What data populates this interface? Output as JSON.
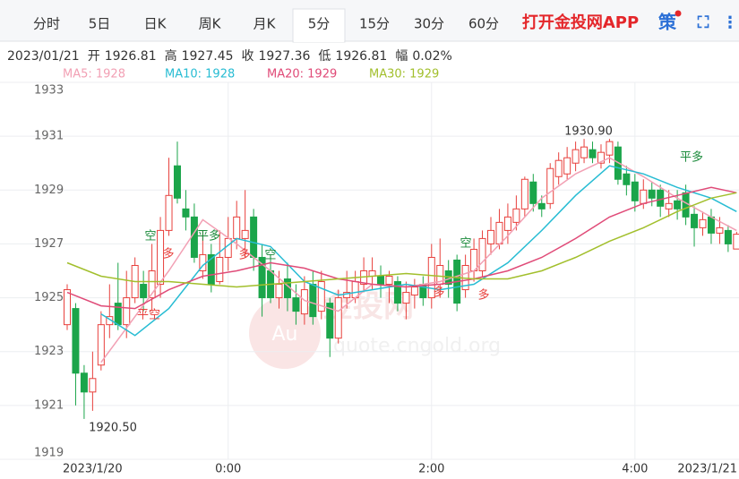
{
  "tabs": [
    "分时",
    "5日",
    "日K",
    "周K",
    "月K",
    "5分",
    "15分",
    "30分",
    "60分"
  ],
  "active_tab": 5,
  "brand": "打开金投网APP",
  "toolbar": [
    "策",
    "⛶",
    "⋮"
  ],
  "info": {
    "date": "2023/01/21",
    "items": [
      {
        "label": "开",
        "value": "1926.81"
      },
      {
        "label": "高",
        "value": "1927.45"
      },
      {
        "label": "收",
        "value": "1927.36"
      },
      {
        "label": "低",
        "value": "1926.81"
      },
      {
        "label": "幅",
        "value": "0.02%"
      }
    ]
  },
  "watermark": [
    "Au",
    "金投网",
    "quote.cngold.org"
  ],
  "chart_data": {
    "type": "candlestick",
    "categories": [
      null,
      null,
      null,
      "2023/1/20",
      null,
      null,
      null,
      null,
      null,
      null,
      null,
      null,
      null,
      null,
      null,
      null,
      null,
      null,
      null,
      "0:00",
      null,
      null,
      null,
      null,
      null,
      null,
      null,
      null,
      null,
      null,
      null,
      null,
      null,
      null,
      null,
      null,
      null,
      null,
      null,
      null,
      null,
      null,
      null,
      "2:00",
      null,
      null,
      null,
      null,
      null,
      null,
      null,
      null,
      null,
      null,
      null,
      null,
      null,
      null,
      null,
      null,
      null,
      null,
      null,
      null,
      null,
      null,
      null,
      "4:00",
      null,
      null,
      null,
      null,
      null,
      null,
      null,
      null,
      null,
      null,
      null,
      "2023/1/21"
    ],
    "open": [
      1924.0,
      1924.6,
      1922.2,
      1921.5,
      1922.5,
      1924,
      1924.8,
      1924,
      1925,
      1925.5,
      1925,
      1925.5,
      1927.5,
      1929.9,
      1928.3,
      1928,
      1926,
      1926.6,
      1925.6,
      1926.5,
      1927.2,
      1927.2,
      1928,
      1926.5,
      1926,
      1925,
      1925.7,
      1925,
      1924.4,
      1925.5,
      1924.5,
      1924.8,
      1923.5,
      1925,
      1925,
      1925.5,
      1925.8,
      1925.8,
      1925.5,
      1925.6,
      1924.8,
      1925.1,
      1925.5,
      1925,
      1925.5,
      1926,
      1926.4,
      1925.3,
      1926,
      1926,
      1927,
      1927,
      1927.5,
      1927.8,
      1928.3,
      1929.3,
      1928.5,
      1928.5,
      1929.5,
      1929.6,
      1930,
      1930.2,
      1930.5,
      1930,
      1930.3,
      1930.6,
      1929.6,
      1929.3,
      1928.5,
      1929,
      1929,
      1928.3,
      1928.6,
      1928.9,
      1928.1,
      1927.6,
      1928,
      1927.4,
      1927.5,
      1926.81
    ],
    "high": [
      1925.5,
      1924.8,
      1922.5,
      1923,
      1924.5,
      1925.5,
      1926.3,
      1926,
      1926.5,
      1926,
      1927,
      1928,
      1930.2,
      1930.8,
      1929,
      1928.5,
      1927.5,
      1927,
      1927.5,
      1928,
      1928.6,
      1929,
      1928.3,
      1927,
      1926.5,
      1926,
      1926.3,
      1925.5,
      1925.8,
      1926,
      1926,
      1925,
      1925.3,
      1926,
      1926,
      1926.5,
      1926.5,
      1926.2,
      1926,
      1925.8,
      1925.6,
      1925.7,
      1925.8,
      1927,
      1927.2,
      1926.4,
      1926.6,
      1926.6,
      1927.2,
      1927.5,
      1928,
      1928.3,
      1928.5,
      1928.8,
      1929.5,
      1929.6,
      1928.8,
      1930,
      1930.4,
      1930.6,
      1930.8,
      1930.9,
      1930.8,
      1930.7,
      1930.9,
      1930.8,
      1929.9,
      1929.6,
      1929.4,
      1929.3,
      1929.2,
      1929,
      1929,
      1929.2,
      1928.4,
      1928.2,
      1928.3,
      1928,
      1927.7,
      1927.45
    ],
    "low": [
      1923.8,
      1921.0,
      1920.5,
      1920.8,
      1922.3,
      1923.5,
      1923.8,
      1923.5,
      1924.8,
      1924.5,
      1924.5,
      1925,
      1927.3,
      1928.5,
      1927.5,
      1926.3,
      1925.7,
      1925.2,
      1925.5,
      1926,
      1926.8,
      1926.5,
      1926,
      1924.3,
      1924.8,
      1924.6,
      1924.5,
      1924,
      1924,
      1924,
      1924.2,
      1922.8,
      1923.3,
      1924.6,
      1924.8,
      1925.2,
      1925.3,
      1925,
      1924.8,
      1924.5,
      1924.2,
      1924.6,
      1924.7,
      1924.6,
      1925,
      1925,
      1924.5,
      1925,
      1925.6,
      1925.8,
      1926.6,
      1926.8,
      1927,
      1927.5,
      1928,
      1928.2,
      1928,
      1928.3,
      1929.2,
      1929.4,
      1929.7,
      1930,
      1930,
      1929.8,
      1930,
      1929.2,
      1928.8,
      1928.2,
      1928.3,
      1928.4,
      1928,
      1928,
      1927.9,
      1927.7,
      1926.9,
      1927.3,
      1927,
      1927,
      1926.7,
      1926.81
    ],
    "close": [
      1925.3,
      1922.2,
      1921.5,
      1922,
      1924,
      1924.3,
      1924,
      1925,
      1926.2,
      1925,
      1926,
      1927.5,
      1928.8,
      1928.7,
      1928,
      1926.5,
      1926.6,
      1925.5,
      1926.5,
      1927.2,
      1928,
      1927.5,
      1926.5,
      1925,
      1925,
      1925.5,
      1925,
      1924.5,
      1925.3,
      1924.3,
      1925.6,
      1923.5,
      1925,
      1925.2,
      1925.6,
      1926,
      1926,
      1925.5,
      1925.8,
      1924.8,
      1925.2,
      1925.4,
      1925,
      1926.5,
      1926.2,
      1925.5,
      1924.8,
      1926.2,
      1926.8,
      1927.2,
      1927.5,
      1927.8,
      1928,
      1928.3,
      1929.4,
      1928.5,
      1928.3,
      1929.8,
      1930.1,
      1930.2,
      1930.5,
      1930.6,
      1930.2,
      1930.4,
      1930.8,
      1929.4,
      1929.2,
      1928.6,
      1929,
      1928.7,
      1928.4,
      1928.5,
      1928.3,
      1928,
      1927.6,
      1927.9,
      1927.4,
      1927.6,
      1927,
      1927.36
    ],
    "up_color": "#e8403c",
    "down_color": "#1ba54a",
    "series": [
      {
        "name": "MA5: 1928",
        "color": "#f2a0b4",
        "x": [
          0,
          4,
          8,
          12,
          16,
          20,
          24,
          28,
          32,
          36,
          40,
          44,
          48,
          52,
          56,
          60,
          64,
          68,
          72,
          76,
          79
        ],
        "values": [
          null,
          1922.6,
          1924.3,
          1926,
          1927.9,
          1927.0,
          1926.0,
          1924.9,
          1924.5,
          1925.5,
          1925.4,
          1925.6,
          1926,
          1927.3,
          1928.7,
          1929.6,
          1930.2,
          1929.5,
          1928.7,
          1928.0,
          1927.5
        ]
      },
      {
        "name": "MA10: 1928",
        "color": "#27bcd3",
        "x": [
          0,
          4,
          8,
          12,
          16,
          20,
          24,
          28,
          32,
          36,
          40,
          44,
          48,
          52,
          56,
          60,
          64,
          68,
          72,
          76,
          79
        ],
        "values": [
          null,
          1924.4,
          1923.6,
          1924.6,
          1926.2,
          1927.2,
          1926.9,
          1925.6,
          1925.1,
          1925.3,
          1925.5,
          1925.3,
          1925.5,
          1926.3,
          1927.5,
          1928.8,
          1929.9,
          1929.6,
          1929.1,
          1928.7,
          1928.2
        ]
      },
      {
        "name": "MA20: 1929",
        "color": "#e04b78",
        "x": [
          0,
          4,
          8,
          12,
          16,
          20,
          24,
          28,
          32,
          36,
          40,
          44,
          48,
          52,
          56,
          60,
          64,
          68,
          72,
          76,
          79
        ],
        "values": [
          1925.2,
          1924.7,
          1924.6,
          1925.3,
          1925.8,
          1926.0,
          1926.3,
          1926.1,
          1925.7,
          1925.5,
          1925.4,
          1925.5,
          1925.7,
          1926.0,
          1926.5,
          1927.2,
          1928.0,
          1928.5,
          1928.8,
          1929.1,
          1928.9
        ]
      },
      {
        "name": "MA30: 1929",
        "color": "#a2bf2c",
        "x": [
          0,
          4,
          8,
          12,
          16,
          20,
          24,
          28,
          32,
          36,
          40,
          44,
          48,
          52,
          56,
          60,
          64,
          68,
          72,
          76,
          79
        ],
        "values": [
          1926.3,
          1925.8,
          1925.6,
          1925.6,
          1925.5,
          1925.4,
          1925.5,
          1925.6,
          1925.7,
          1925.8,
          1925.9,
          1925.8,
          1925.7,
          1925.7,
          1926.0,
          1926.5,
          1927.1,
          1927.6,
          1928.2,
          1928.7,
          1928.9
        ]
      }
    ],
    "annotations": [
      "1930.90",
      "1920.50",
      "空",
      "多",
      "平多",
      "平空",
      "多",
      "空",
      "多",
      "空",
      "多",
      "平多"
    ],
    "ylim": [
      1919,
      1933
    ],
    "yticks": [
      1919,
      1921,
      1923,
      1925,
      1927,
      1929,
      1931,
      1933
    ],
    "grid": true
  }
}
